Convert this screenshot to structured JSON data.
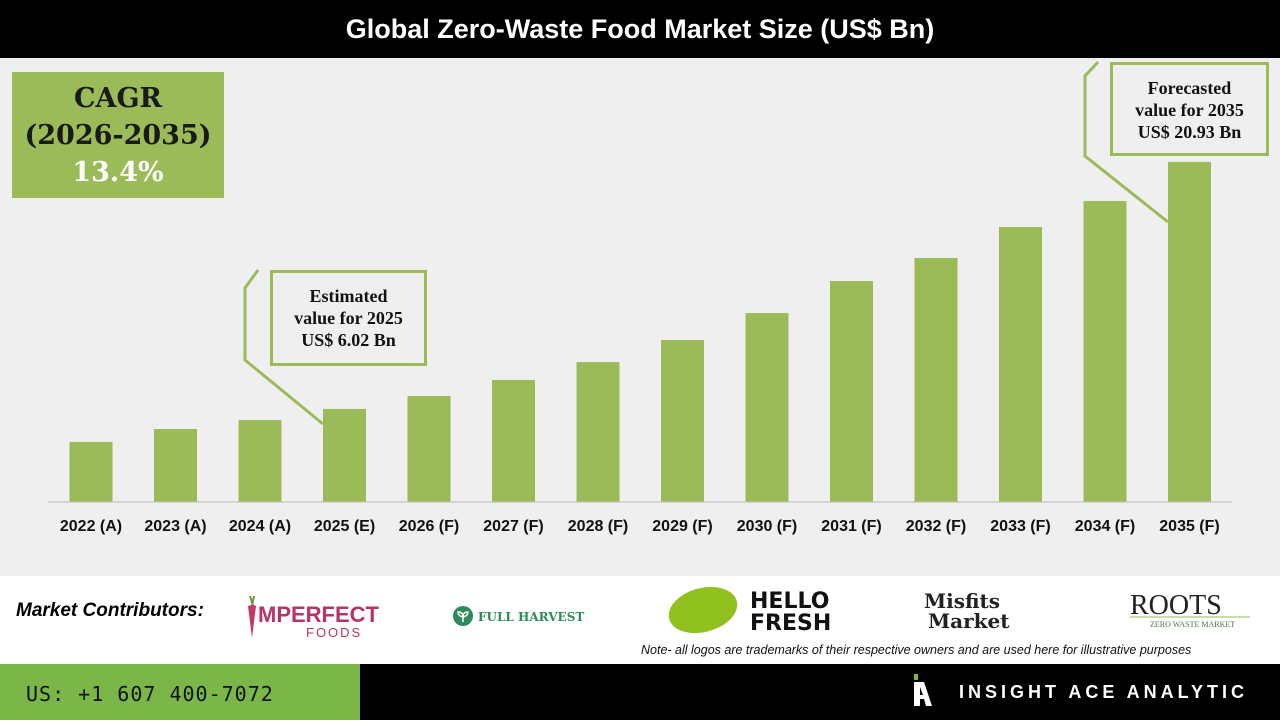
{
  "chart_data": {
    "type": "bar",
    "title": "Global Zero-Waste Food Market Size (US$ Bn)",
    "categories": [
      "2022 (A)",
      "2023 (A)",
      "2024 (A)",
      "2025 (E)",
      "2026 (F)",
      "2027 (F)",
      "2028 (F)",
      "2029 (F)",
      "2030 (F)",
      "2031 (F)",
      "2032 (F)",
      "2033 (F)",
      "2034 (F)",
      "2035 (F)"
    ],
    "values": [
      4.03,
      4.81,
      5.35,
      6.02,
      6.8,
      7.77,
      8.85,
      10.18,
      11.81,
      13.74,
      15.13,
      17.0,
      18.57,
      20.93
    ],
    "xlabel": "",
    "ylabel": "",
    "grid": false,
    "color": "#9bbb59"
  },
  "cagr": {
    "line1": "CAGR",
    "line2": "(2026-2035)",
    "value": "13.4%"
  },
  "callouts": {
    "estimated": {
      "line1": "Estimated",
      "line2": "value for 2025",
      "line3": "US$ 6.02 Bn"
    },
    "forecast": {
      "line1": "Forecasted",
      "line2": "value for 2035",
      "line3": "US$ 20.93 Bn"
    }
  },
  "contributors": {
    "label": "Market Contributors:",
    "logos": [
      "IMPERFECT FOODS",
      "FULL HARVEST",
      "HELLO FRESH",
      "Misfits Market",
      "ROOTS ZERO WASTE MARKET"
    ],
    "note": "Note- all logos are trademarks of their respective owners and are used here for illustrative purposes"
  },
  "footer": {
    "phone": "US: +1 607 400-7072",
    "brand": "INSIGHT ACE ANALYTIC"
  }
}
